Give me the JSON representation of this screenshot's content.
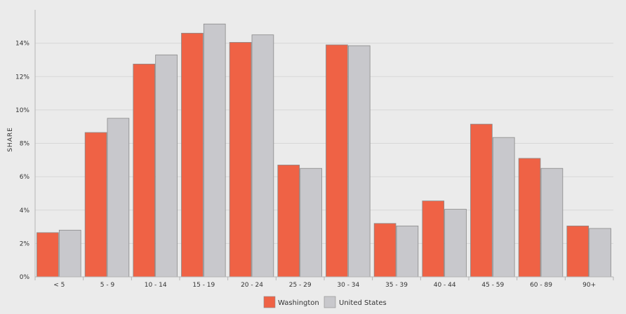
{
  "chart_data": {
    "type": "bar",
    "ylabel": "SHARE",
    "xlabel": "",
    "title": "",
    "ylim": [
      0,
      16
    ],
    "yticks": [
      0,
      2,
      4,
      6,
      8,
      10,
      12,
      14
    ],
    "ytick_suffix": "%",
    "grid": true,
    "legend_position": "bottom-center",
    "categories": [
      "< 5",
      "5 - 9",
      "10 - 14",
      "15 - 19",
      "20 - 24",
      "25 - 29",
      "30 - 34",
      "35 - 39",
      "40 - 44",
      "45 - 59",
      "60 - 89",
      "90+"
    ],
    "series": [
      {
        "name": "Washington",
        "color": "#ef6245",
        "values": [
          2.65,
          8.65,
          12.75,
          14.6,
          14.05,
          6.7,
          13.9,
          3.2,
          4.55,
          9.15,
          7.1,
          3.05
        ]
      },
      {
        "name": "United States",
        "color": "#c8c8cc",
        "values": [
          2.8,
          9.5,
          13.3,
          15.15,
          14.5,
          6.5,
          13.85,
          3.05,
          4.05,
          8.35,
          6.5,
          2.9
        ]
      }
    ]
  }
}
